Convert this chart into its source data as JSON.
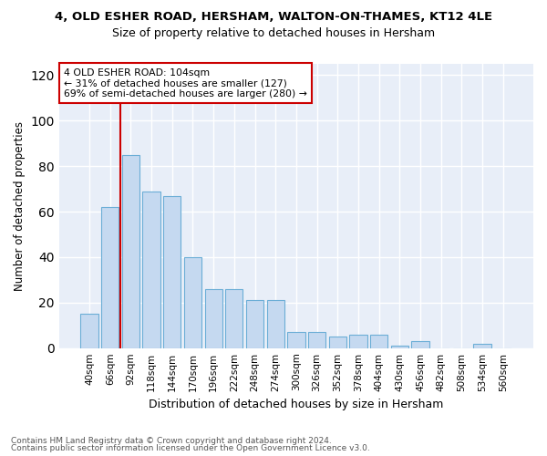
{
  "title1": "4, OLD ESHER ROAD, HERSHAM, WALTON-ON-THAMES, KT12 4LE",
  "title2": "Size of property relative to detached houses in Hersham",
  "xlabel": "Distribution of detached houses by size in Hersham",
  "ylabel": "Number of detached properties",
  "bar_heights": [
    15,
    62,
    85,
    69,
    67,
    40,
    26,
    26,
    21,
    21,
    7,
    7,
    5,
    6,
    6,
    1,
    3,
    0,
    0,
    2,
    0
  ],
  "bin_labels": [
    "40sqm",
    "66sqm",
    "92sqm",
    "118sqm",
    "144sqm",
    "170sqm",
    "196sqm",
    "222sqm",
    "248sqm",
    "274sqm",
    "300sqm",
    "326sqm",
    "352sqm",
    "378sqm",
    "404sqm",
    "430sqm",
    "456sqm",
    "482sqm",
    "508sqm",
    "534sqm",
    "560sqm"
  ],
  "bar_color": "#c5d9f0",
  "bar_edge_color": "#6baed6",
  "vline_color": "#cc0000",
  "vline_pos": 1.5,
  "annotation_text": "4 OLD ESHER ROAD: 104sqm\n← 31% of detached houses are smaller (127)\n69% of semi-detached houses are larger (280) →",
  "annotation_box_color": "white",
  "annotation_box_edge": "#cc0000",
  "ylim": [
    0,
    125
  ],
  "yticks": [
    0,
    20,
    40,
    60,
    80,
    100,
    120
  ],
  "footer1": "Contains HM Land Registry data © Crown copyright and database right 2024.",
  "footer2": "Contains public sector information licensed under the Open Government Licence v3.0.",
  "background_color": "#e8eef8"
}
